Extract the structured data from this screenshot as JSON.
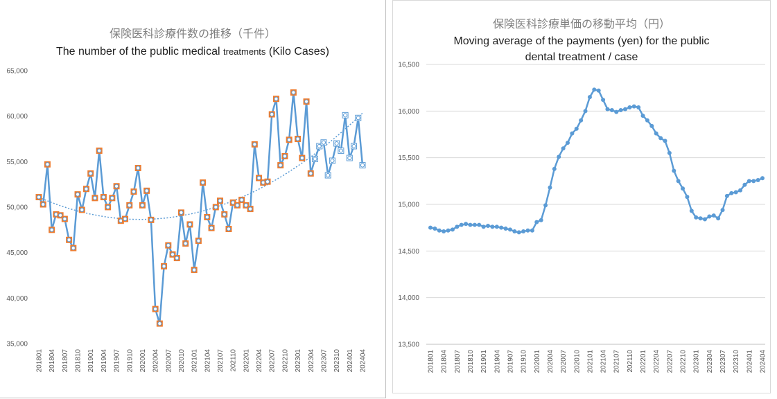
{
  "chart_data": [
    {
      "type": "line",
      "title": "保険医科診療件数の推移（千件）",
      "subtitle": "The number of the public medical treatments",
      "subtitle_small": "treatments",
      "subtitle_tail": "(Kilo Cases)",
      "ylim": [
        35000,
        65000
      ],
      "yticks": [
        "65,000",
        "60,000",
        "55,000",
        "50,000",
        "45,000",
        "40,000",
        "35,000"
      ],
      "ytick_values": [
        65000,
        60000,
        55000,
        50000,
        45000,
        40000,
        35000
      ],
      "x": [
        "201801",
        "201802",
        "201803",
        "201804",
        "201805",
        "201806",
        "201807",
        "201808",
        "201809",
        "201810",
        "201811",
        "201812",
        "201901",
        "201902",
        "201903",
        "201904",
        "201905",
        "201906",
        "201907",
        "201908",
        "201909",
        "201910",
        "201911",
        "201912",
        "202001",
        "202002",
        "202003",
        "202004",
        "202005",
        "202006",
        "202007",
        "202008",
        "202009",
        "202010",
        "202011",
        "202012",
        "202101",
        "202102",
        "202103",
        "202104",
        "202105",
        "202106",
        "202107",
        "202108",
        "202109",
        "202110",
        "202111",
        "202112",
        "202201",
        "202202",
        "202203",
        "202204",
        "202205",
        "202206",
        "202207",
        "202208",
        "202209",
        "202210",
        "202211",
        "202212",
        "202301",
        "202302",
        "202303",
        "202304",
        "202305",
        "202306",
        "202307",
        "202308",
        "202309",
        "202310",
        "202311",
        "202312",
        "202401",
        "202402",
        "202403",
        "202404"
      ],
      "xtick_labels": [
        "201801",
        "201804",
        "201807",
        "201810",
        "201901",
        "201904",
        "201907",
        "201910",
        "202001",
        "202004",
        "202007",
        "202010",
        "202101",
        "202104",
        "202107",
        "202110",
        "202201",
        "202204",
        "202207",
        "202210",
        "202301",
        "202304",
        "202307",
        "202310",
        "202401",
        "202404"
      ],
      "series": [
        {
          "name": "",
          "color": "#5b9bd5",
          "values": [
            51100,
            50300,
            54700,
            47500,
            49200,
            49100,
            48700,
            46400,
            45500,
            51400,
            49700,
            52000,
            53700,
            51000,
            56200,
            51100,
            50000,
            51000,
            52300,
            48500,
            48700,
            50200,
            51700,
            54300,
            50200,
            51800,
            48600,
            38800,
            37200,
            43500,
            45800,
            44800,
            44400,
            49400,
            46000,
            48100,
            43100,
            46300,
            52700,
            48900,
            47700,
            50000,
            50700,
            49200,
            47600,
            50500,
            50200,
            50800,
            50200,
            49800,
            56900,
            53200,
            52700,
            52800,
            60200,
            61900,
            54600,
            55600,
            57400,
            62600,
            57500,
            55400,
            61600,
            53700,
            55300,
            56700,
            57100,
            53500,
            55100,
            57000,
            56200,
            60100,
            55400,
            56700,
            59800,
            54600
          ]
        }
      ],
      "trendline": {
        "type": "polynomial",
        "color": "#5b9bd5"
      },
      "marker_styles": {
        "orange_face": "#ed7d31",
        "white_face": "#ffffff",
        "orange_count": 64
      }
    },
    {
      "type": "line",
      "title": "保険医科診療単価の移動平均（円）",
      "subtitle_line1": "Moving average of the payments (yen) for the public",
      "subtitle_line2": "dental treatment / case",
      "ylim": [
        13500,
        16500
      ],
      "yticks": [
        "16,500",
        "16,000",
        "15,500",
        "15,000",
        "14,500",
        "14,000",
        "13,500"
      ],
      "ytick_values": [
        16500,
        16000,
        15500,
        15000,
        14500,
        14000,
        13500
      ],
      "x": [
        "201801",
        "201802",
        "201803",
        "201804",
        "201805",
        "201806",
        "201807",
        "201808",
        "201809",
        "201810",
        "201811",
        "201812",
        "201901",
        "201902",
        "201903",
        "201904",
        "201905",
        "201906",
        "201907",
        "201908",
        "201909",
        "201910",
        "201911",
        "201912",
        "202001",
        "202002",
        "202003",
        "202004",
        "202005",
        "202006",
        "202007",
        "202008",
        "202009",
        "202010",
        "202011",
        "202012",
        "202101",
        "202102",
        "202103",
        "202104",
        "202105",
        "202106",
        "202107",
        "202108",
        "202109",
        "202110",
        "202111",
        "202112",
        "202201",
        "202202",
        "202203",
        "202204",
        "202205",
        "202206",
        "202207",
        "202208",
        "202209",
        "202210",
        "202211",
        "202212",
        "202301",
        "202302",
        "202303",
        "202304",
        "202305",
        "202306",
        "202307",
        "202308",
        "202309",
        "202310",
        "202311",
        "202312",
        "202401",
        "202402",
        "202403",
        "202404"
      ],
      "xtick_labels": [
        "201801",
        "201804",
        "201807",
        "201810",
        "201901",
        "201904",
        "201907",
        "201910",
        "202001",
        "202004",
        "202007",
        "202010",
        "202101",
        "202104",
        "202107",
        "202110",
        "202201",
        "202204",
        "202207",
        "202210",
        "202301",
        "202304",
        "202307",
        "202310",
        "202401",
        "202404"
      ],
      "series": [
        {
          "name": "",
          "color": "#5b9bd5",
          "values": [
            14750,
            14740,
            14720,
            14710,
            14720,
            14730,
            14760,
            14780,
            14790,
            14780,
            14780,
            14780,
            14760,
            14770,
            14760,
            14760,
            14750,
            14740,
            14730,
            14710,
            14700,
            14710,
            14720,
            14720,
            14810,
            14830,
            14990,
            15180,
            15380,
            15510,
            15600,
            15660,
            15760,
            15810,
            15900,
            16000,
            16150,
            16230,
            16220,
            16120,
            16020,
            16010,
            15990,
            16010,
            16020,
            16040,
            16050,
            16040,
            15950,
            15900,
            15840,
            15760,
            15710,
            15680,
            15550,
            15360,
            15250,
            15170,
            15080,
            14930,
            14860,
            14850,
            14840,
            14870,
            14880,
            14850,
            14940,
            15090,
            15120,
            15130,
            15150,
            15210,
            15250,
            15250,
            15260,
            15280
          ]
        }
      ]
    }
  ]
}
